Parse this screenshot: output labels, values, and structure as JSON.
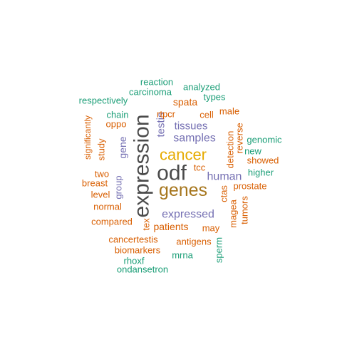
{
  "colors": {
    "dark": "#4a4a4a",
    "orange": "#d95f02",
    "teal": "#1b9e77",
    "purple": "#7570b3",
    "gold": "#e6ab02",
    "brown": "#a6761d"
  },
  "words": [
    {
      "text": "expression",
      "color": "dark"
    },
    {
      "text": "odf",
      "color": "dark"
    },
    {
      "text": "genes",
      "color": "brown"
    },
    {
      "text": "cancer",
      "color": "gold"
    },
    {
      "text": "expressed",
      "color": "purple"
    },
    {
      "text": "human",
      "color": "purple"
    },
    {
      "text": "samples",
      "color": "purple"
    },
    {
      "text": "tissues",
      "color": "purple"
    },
    {
      "text": "testis",
      "color": "purple"
    },
    {
      "text": "gene",
      "color": "purple"
    },
    {
      "text": "group",
      "color": "purple"
    },
    {
      "text": "patients",
      "color": "orange"
    },
    {
      "text": "spata",
      "color": "orange"
    },
    {
      "text": "rtpcr",
      "color": "orange"
    },
    {
      "text": "cell",
      "color": "orange"
    },
    {
      "text": "tcc",
      "color": "orange"
    },
    {
      "text": "oppo",
      "color": "orange"
    },
    {
      "text": "study",
      "color": "orange"
    },
    {
      "text": "two",
      "color": "orange"
    },
    {
      "text": "breast",
      "color": "orange"
    },
    {
      "text": "level",
      "color": "orange"
    },
    {
      "text": "normal",
      "color": "orange"
    },
    {
      "text": "compared",
      "color": "orange"
    },
    {
      "text": "cancertestis",
      "color": "orange"
    },
    {
      "text": "biomarkers",
      "color": "orange"
    },
    {
      "text": "antigens",
      "color": "orange"
    },
    {
      "text": "may",
      "color": "orange"
    },
    {
      "text": "ctas",
      "color": "orange"
    },
    {
      "text": "magea",
      "color": "orange"
    },
    {
      "text": "tumors",
      "color": "orange"
    },
    {
      "text": "prostate",
      "color": "orange"
    },
    {
      "text": "detection",
      "color": "orange"
    },
    {
      "text": "reverse",
      "color": "orange"
    },
    {
      "text": "showed",
      "color": "orange"
    },
    {
      "text": "male",
      "color": "orange"
    },
    {
      "text": "significantly",
      "color": "orange"
    },
    {
      "text": "tex",
      "color": "orange"
    },
    {
      "text": "reaction",
      "color": "teal"
    },
    {
      "text": "analyzed",
      "color": "teal"
    },
    {
      "text": "carcinoma",
      "color": "teal"
    },
    {
      "text": "types",
      "color": "teal"
    },
    {
      "text": "respectively",
      "color": "teal"
    },
    {
      "text": "chain",
      "color": "teal"
    },
    {
      "text": "genomic",
      "color": "teal"
    },
    {
      "text": "new",
      "color": "teal"
    },
    {
      "text": "higher",
      "color": "teal"
    },
    {
      "text": "sperm",
      "color": "teal"
    },
    {
      "text": "mrna",
      "color": "teal"
    },
    {
      "text": "rhoxf",
      "color": "teal"
    },
    {
      "text": "ondansetron",
      "color": "teal"
    }
  ]
}
